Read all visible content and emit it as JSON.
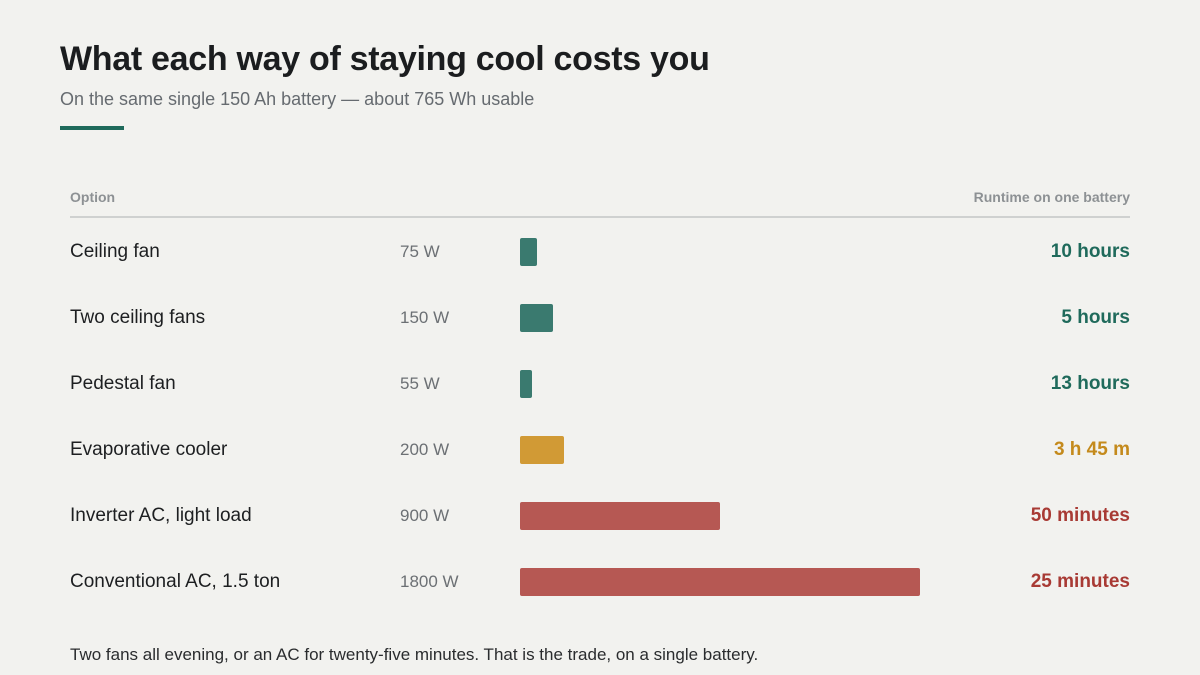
{
  "title": "What each way of staying cool costs you",
  "subtitle": "On the same single 150 Ah battery — about 765 Wh usable",
  "header": {
    "option": "Option",
    "runtime": "Runtime on one battery"
  },
  "note": "Two fans all evening, or an AC for twenty-five minutes. That is the trade, on a single battery.",
  "colors": {
    "fan": "#3a7a6f",
    "fan_text": "#1f6a5b",
    "cooler": "#d19a35",
    "cooler_text": "#c48a1c",
    "ac": "#b65853",
    "ac_text": "#a83a34"
  },
  "chart_data": {
    "type": "bar",
    "orientation": "horizontal",
    "xlim": [
      0,
      1800
    ],
    "categories": [
      "Ceiling fan",
      "Two ceiling fans",
      "Pedestal fan",
      "Evaporative cooler",
      "Inverter AC, light load",
      "Conventional AC, 1.5 ton"
    ],
    "values": [
      75,
      150,
      55,
      200,
      900,
      1800
    ],
    "rows": [
      {
        "label": "Ceiling fan",
        "watts_label": "75 W",
        "watts": 75,
        "runtime": "10 hours",
        "group": "fan"
      },
      {
        "label": "Two ceiling fans",
        "watts_label": "150 W",
        "watts": 150,
        "runtime": "5 hours",
        "group": "fan"
      },
      {
        "label": "Pedestal fan",
        "watts_label": "55 W",
        "watts": 55,
        "runtime": "13 hours",
        "group": "fan"
      },
      {
        "label": "Evaporative cooler",
        "watts_label": "200 W",
        "watts": 200,
        "runtime": "3 h 45 m",
        "group": "cooler"
      },
      {
        "label": "Inverter AC, light load",
        "watts_label": "900 W",
        "watts": 900,
        "runtime": "50 minutes",
        "group": "ac"
      },
      {
        "label": "Conventional AC, 1.5 ton",
        "watts_label": "1800 W",
        "watts": 1800,
        "runtime": "25 minutes",
        "group": "ac"
      }
    ]
  }
}
